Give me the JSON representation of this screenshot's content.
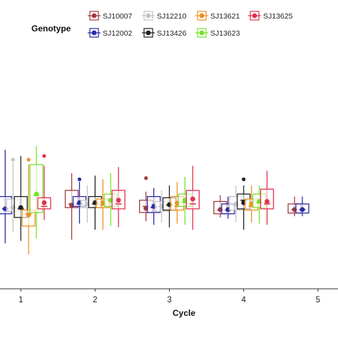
{
  "chart_data": {
    "type": "box",
    "xlabel": "Cycle",
    "ylabel": "",
    "legend_title": "Genotype",
    "legend_position": "top",
    "grid": false,
    "categories": [
      "1",
      "2",
      "3",
      "4",
      "5"
    ],
    "x_range": [
      0.72,
      5.27
    ],
    "y_range": [
      0,
      1
    ],
    "series": [
      {
        "name": "SJ10007",
        "color": "#a33b3f",
        "boxes": [
          null,
          {
            "q1": 0.33,
            "median": 0.345,
            "q3": 0.4,
            "whisker_lo": 0.2,
            "whisker_hi": 0.47,
            "mean": 0.34,
            "outliers": []
          },
          {
            "q1": 0.31,
            "median": 0.335,
            "q3": 0.36,
            "whisker_lo": 0.275,
            "whisker_hi": 0.395,
            "mean": 0.327,
            "outliers": [
              0.45
            ]
          },
          {
            "q1": 0.305,
            "median": 0.32,
            "q3": 0.355,
            "whisker_lo": 0.29,
            "whisker_hi": 0.38,
            "mean": 0.322,
            "outliers": []
          },
          {
            "q1": 0.308,
            "median": 0.322,
            "q3": 0.345,
            "whisker_lo": 0.295,
            "whisker_hi": 0.375,
            "mean": 0.322,
            "outliers": []
          }
        ]
      },
      {
        "name": "SJ12002",
        "color": "#2c2ca8",
        "boxes": [
          {
            "q1": 0.305,
            "median": 0.325,
            "q3": 0.375,
            "whisker_lo": 0.185,
            "whisker_hi": 0.565,
            "mean": 0.325,
            "outliers": []
          },
          {
            "q1": 0.335,
            "median": 0.345,
            "q3": 0.375,
            "whisker_lo": 0.265,
            "whisker_hi": 0.435,
            "mean": 0.35,
            "outliers": [
              0.445
            ]
          },
          {
            "q1": 0.31,
            "median": 0.33,
            "q3": 0.375,
            "whisker_lo": 0.26,
            "whisker_hi": 0.41,
            "mean": 0.335,
            "outliers": []
          },
          {
            "q1": 0.305,
            "median": 0.32,
            "q3": 0.345,
            "whisker_lo": 0.285,
            "whisker_hi": 0.375,
            "mean": 0.322,
            "outliers": []
          },
          {
            "q1": 0.308,
            "median": 0.322,
            "q3": 0.345,
            "whisker_lo": 0.295,
            "whisker_hi": 0.375,
            "mean": 0.322,
            "outliers": []
          }
        ]
      },
      {
        "name": "SJ12210",
        "color": "#c4c4c4",
        "boxes": [
          {
            "q1": 0.315,
            "median": 0.33,
            "q3": 0.365,
            "whisker_lo": 0.23,
            "whisker_hi": 0.515,
            "mean": 0.33,
            "outliers": [
              0.525
            ]
          },
          {
            "q1": 0.33,
            "median": 0.34,
            "q3": 0.36,
            "whisker_lo": 0.27,
            "whisker_hi": 0.42,
            "mean": 0.345,
            "outliers": []
          },
          {
            "q1": 0.315,
            "median": 0.335,
            "q3": 0.355,
            "whisker_lo": 0.27,
            "whisker_hi": 0.4,
            "mean": 0.335,
            "outliers": []
          },
          {
            "q1": 0.32,
            "median": 0.34,
            "q3": 0.375,
            "whisker_lo": 0.27,
            "whisker_hi": 0.42,
            "mean": 0.345,
            "outliers": []
          },
          null
        ]
      },
      {
        "name": "SJ13426",
        "color": "#222222",
        "boxes": [
          {
            "q1": 0.29,
            "median": 0.325,
            "q3": 0.375,
            "whisker_lo": 0.195,
            "whisker_hi": 0.54,
            "mean": 0.33,
            "outliers": []
          },
          {
            "q1": 0.33,
            "median": 0.345,
            "q3": 0.375,
            "whisker_lo": 0.24,
            "whisker_hi": 0.46,
            "mean": 0.35,
            "outliers": []
          },
          {
            "q1": 0.32,
            "median": 0.34,
            "q3": 0.37,
            "whisker_lo": 0.25,
            "whisker_hi": 0.42,
            "mean": 0.342,
            "outliers": []
          },
          {
            "q1": 0.325,
            "median": 0.36,
            "q3": 0.385,
            "whisker_lo": 0.24,
            "whisker_hi": 0.42,
            "mean": 0.35,
            "outliers": [
              0.445
            ]
          },
          null
        ]
      },
      {
        "name": "SJ13621",
        "color": "#f0901e",
        "boxes": [
          {
            "q1": 0.255,
            "median": 0.305,
            "q3": 0.32,
            "whisker_lo": 0.14,
            "whisker_hi": 0.505,
            "mean": 0.3,
            "outliers": [
              0.525
            ]
          },
          {
            "q1": 0.33,
            "median": 0.34,
            "q3": 0.365,
            "whisker_lo": 0.24,
            "whisker_hi": 0.445,
            "mean": 0.35,
            "outliers": []
          },
          {
            "q1": 0.32,
            "median": 0.335,
            "q3": 0.375,
            "whisker_lo": 0.265,
            "whisker_hi": 0.435,
            "mean": 0.348,
            "outliers": []
          },
          {
            "q1": 0.32,
            "median": 0.335,
            "q3": 0.365,
            "whisker_lo": 0.27,
            "whisker_hi": 0.42,
            "mean": 0.345,
            "outliers": []
          },
          null
        ]
      },
      {
        "name": "SJ13623",
        "color": "#78e02c",
        "boxes": [
          {
            "q1": 0.31,
            "median": 0.38,
            "q3": 0.505,
            "whisker_lo": 0.205,
            "whisker_hi": 0.58,
            "mean": 0.385,
            "outliers": []
          },
          {
            "q1": 0.335,
            "median": 0.36,
            "q3": 0.385,
            "whisker_lo": 0.255,
            "whisker_hi": 0.47,
            "mean": 0.36,
            "outliers": []
          },
          {
            "q1": 0.335,
            "median": 0.35,
            "q3": 0.385,
            "whisker_lo": 0.26,
            "whisker_hi": 0.455,
            "mean": 0.36,
            "outliers": []
          },
          {
            "q1": 0.33,
            "median": 0.35,
            "q3": 0.385,
            "whisker_lo": 0.265,
            "whisker_hi": 0.42,
            "mean": 0.355,
            "outliers": []
          },
          null
        ]
      },
      {
        "name": "SJ13625",
        "color": "#e2314e",
        "boxes": [
          {
            "q1": 0.325,
            "median": 0.335,
            "q3": 0.37,
            "whisker_lo": 0.28,
            "whisker_hi": 0.5,
            "mean": 0.35,
            "outliers": [
              0.54
            ]
          },
          {
            "q1": 0.325,
            "median": 0.345,
            "q3": 0.4,
            "whisker_lo": 0.25,
            "whisker_hi": 0.495,
            "mean": 0.36,
            "outliers": []
          },
          {
            "q1": 0.325,
            "median": 0.345,
            "q3": 0.4,
            "whisker_lo": 0.24,
            "whisker_hi": 0.5,
            "mean": 0.365,
            "outliers": []
          },
          {
            "q1": 0.325,
            "median": 0.345,
            "q3": 0.405,
            "whisker_lo": 0.26,
            "whisker_hi": 0.48,
            "mean": 0.355,
            "outliers": []
          },
          null
        ]
      }
    ]
  }
}
